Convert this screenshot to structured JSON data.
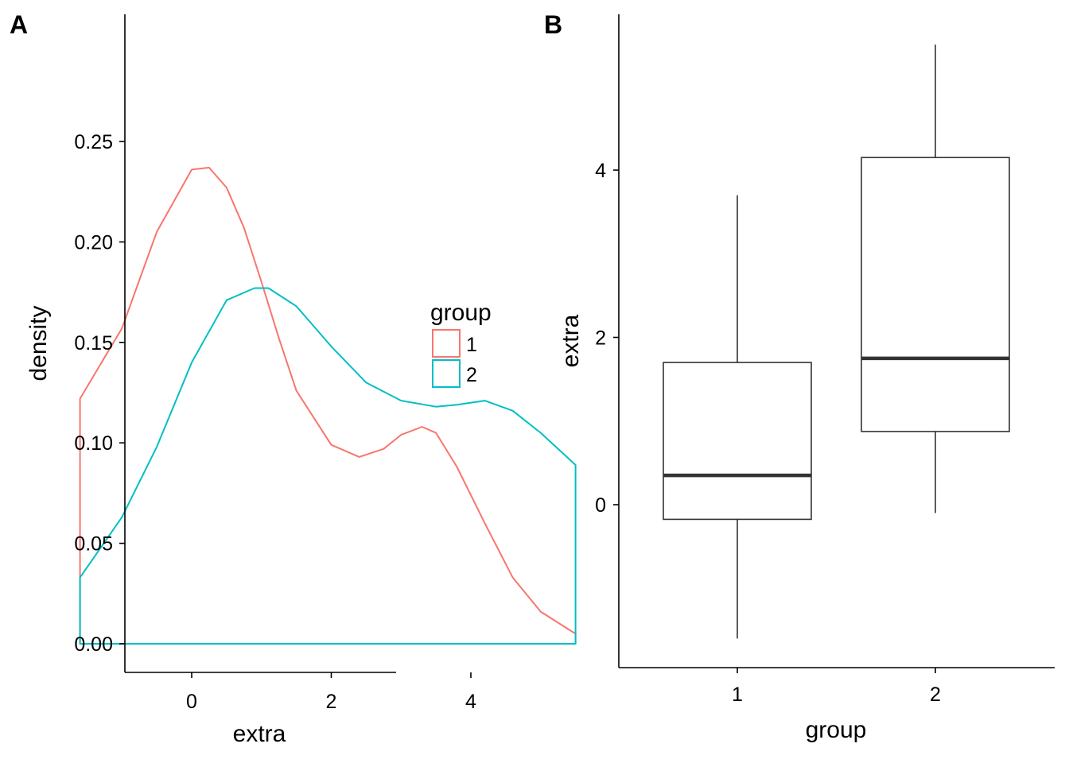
{
  "panels": {
    "a": {
      "tag": "A"
    },
    "b": {
      "tag": "B"
    }
  },
  "chart_data": [
    {
      "type": "line",
      "subtype": "density",
      "xlabel": "extra",
      "ylabel": "density",
      "xlim": [
        -1.6,
        5.5
      ],
      "ylim": [
        0,
        0.25
      ],
      "xticks": [
        0,
        2,
        4
      ],
      "yticks": [
        0.0,
        0.05,
        0.1,
        0.15,
        0.2,
        0.25
      ],
      "ytick_labels": [
        "0.00",
        "0.05",
        "0.10",
        "0.15",
        "0.20",
        "0.25"
      ],
      "legend": {
        "title": "group",
        "position": "right"
      },
      "series": [
        {
          "name": "1",
          "color": "#F8766D",
          "x": [
            -1.6,
            -1.0,
            -0.5,
            0.0,
            0.25,
            0.5,
            0.75,
            1.0,
            1.25,
            1.5,
            2.0,
            2.4,
            2.75,
            3.0,
            3.3,
            3.5,
            3.8,
            4.2,
            4.6,
            5.0,
            5.5
          ],
          "y": [
            0.122,
            0.157,
            0.205,
            0.236,
            0.237,
            0.227,
            0.207,
            0.18,
            0.152,
            0.126,
            0.099,
            0.093,
            0.097,
            0.104,
            0.108,
            0.105,
            0.088,
            0.06,
            0.033,
            0.016,
            0.005
          ]
        },
        {
          "name": "2",
          "color": "#00BFC4",
          "x": [
            -1.6,
            -1.0,
            -0.5,
            0.0,
            0.5,
            0.9,
            1.1,
            1.5,
            2.0,
            2.5,
            3.0,
            3.5,
            3.8,
            4.2,
            4.6,
            5.0,
            5.5
          ],
          "y": [
            0.033,
            0.063,
            0.098,
            0.14,
            0.171,
            0.177,
            0.177,
            0.168,
            0.148,
            0.13,
            0.121,
            0.118,
            0.119,
            0.121,
            0.116,
            0.105,
            0.089
          ]
        }
      ]
    },
    {
      "type": "boxplot",
      "xlabel": "group",
      "ylabel": "extra",
      "categories": [
        "1",
        "2"
      ],
      "ylim": [
        -2.0,
        5.8
      ],
      "yticks": [
        0,
        2,
        4
      ],
      "boxes": [
        {
          "category": "1",
          "whisker_low": -1.6,
          "q1": -0.175,
          "median": 0.35,
          "q3": 1.7,
          "whisker_high": 3.7
        },
        {
          "category": "2",
          "whisker_low": -0.1,
          "q1": 0.875,
          "median": 1.75,
          "q3": 4.15,
          "whisker_high": 5.5
        }
      ]
    }
  ]
}
